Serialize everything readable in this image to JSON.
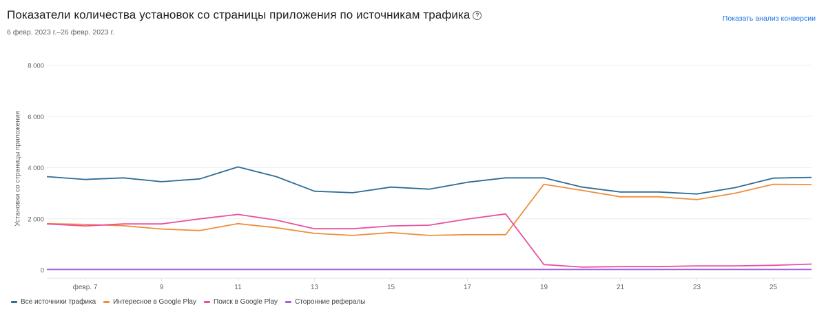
{
  "header": {
    "title": "Показатели количества установок со страницы приложения по источникам трафика",
    "help_icon": "question-circle-icon",
    "date_range": "6 февр. 2023 г.–26 февр. 2023 г.",
    "conversion_link": "Показать анализ конверсии"
  },
  "colors": {
    "all_sources": "#2f6b96",
    "explore": "#ef8e3b",
    "search": "#e9519f",
    "referrals": "#a55fe0",
    "link": "#1a73e8",
    "grid": "#eeeeee"
  },
  "chart_data": {
    "type": "line",
    "title": "Показатели количества установок со страницы приложения по источникам трафика",
    "subtitle": "6 февр. 2023 г.–26 февр. 2023 г.",
    "xlabel": "",
    "ylabel": "Установки со страницы приложения",
    "ylim": [
      0,
      8000
    ],
    "yticks": [
      0,
      2000,
      4000,
      6000,
      8000
    ],
    "ytick_labels": [
      "0",
      "2 000",
      "4 000",
      "6 000",
      "8 000"
    ],
    "grid": true,
    "legend_position": "bottom",
    "x": [
      "6",
      "7",
      "8",
      "9",
      "10",
      "11",
      "12",
      "13",
      "14",
      "15",
      "16",
      "17",
      "18",
      "19",
      "20",
      "21",
      "22",
      "23",
      "24",
      "25",
      "26"
    ],
    "xtick_labels": [
      {
        "index": 1,
        "label": "февр. 7"
      },
      {
        "index": 3,
        "label": "9"
      },
      {
        "index": 5,
        "label": "11"
      },
      {
        "index": 7,
        "label": "13"
      },
      {
        "index": 9,
        "label": "15"
      },
      {
        "index": 11,
        "label": "17"
      },
      {
        "index": 13,
        "label": "19"
      },
      {
        "index": 15,
        "label": "21"
      },
      {
        "index": 17,
        "label": "23"
      },
      {
        "index": 19,
        "label": "25"
      }
    ],
    "series": [
      {
        "name": "Все источники трафика",
        "color": "#2f6b96",
        "values": [
          3650,
          3540,
          3600,
          3450,
          3560,
          4030,
          3650,
          3080,
          3020,
          3240,
          3160,
          3430,
          3600,
          3600,
          3240,
          3050,
          3050,
          2970,
          3220,
          3590,
          3620
        ]
      },
      {
        "name": "Интересное в Google Play",
        "color": "#ef8e3b",
        "values": [
          1810,
          1780,
          1730,
          1600,
          1540,
          1810,
          1650,
          1430,
          1350,
          1460,
          1350,
          1380,
          1380,
          3350,
          3110,
          2860,
          2860,
          2750,
          3000,
          3350,
          3340
        ]
      },
      {
        "name": "Поиск в Google Play",
        "color": "#e9519f",
        "values": [
          1800,
          1720,
          1800,
          1800,
          2000,
          2170,
          1950,
          1610,
          1610,
          1720,
          1750,
          1990,
          2190,
          210,
          110,
          130,
          130,
          160,
          160,
          180,
          230
        ]
      },
      {
        "name": "Сторонние рефералы",
        "color": "#a55fe0",
        "values": [
          20,
          20,
          20,
          20,
          20,
          20,
          20,
          20,
          20,
          20,
          20,
          20,
          20,
          20,
          20,
          20,
          20,
          20,
          20,
          20,
          20
        ]
      }
    ]
  }
}
